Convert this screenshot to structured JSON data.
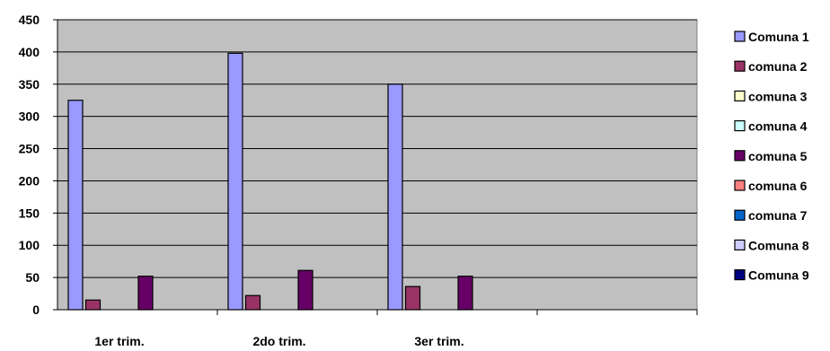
{
  "chart_data": {
    "type": "bar",
    "categories": [
      "1er trim.",
      "2do trim.",
      "3er trim.",
      ""
    ],
    "ylim": [
      0,
      450
    ],
    "yticks": [
      0,
      50,
      100,
      150,
      200,
      250,
      300,
      350,
      400,
      450
    ],
    "grid": true,
    "legend_position": "right",
    "plot_background": "#c0c0c0",
    "series": [
      {
        "name": "Comuna 1",
        "color": "#9999ff",
        "values": [
          325,
          398,
          350,
          0
        ]
      },
      {
        "name": "comuna 2",
        "color": "#993366",
        "values": [
          15,
          22,
          36,
          0
        ]
      },
      {
        "name": "comuna 3",
        "color": "#ffffcc",
        "values": [
          0,
          0,
          0,
          0
        ]
      },
      {
        "name": "comuna 4",
        "color": "#ccffff",
        "values": [
          0,
          0,
          0,
          0
        ]
      },
      {
        "name": "comuna 5",
        "color": "#660066",
        "values": [
          52,
          61,
          52,
          0
        ]
      },
      {
        "name": "comuna 6",
        "color": "#ff8080",
        "values": [
          0,
          0,
          0,
          0
        ]
      },
      {
        "name": "comuna 7",
        "color": "#0066cc",
        "values": [
          0,
          0,
          0,
          0
        ]
      },
      {
        "name": "Comuna 8",
        "color": "#ccccff",
        "values": [
          0,
          0,
          0,
          0
        ]
      },
      {
        "name": "Comuna 9",
        "color": "#000080",
        "values": [
          0,
          0,
          0,
          0
        ]
      }
    ]
  }
}
